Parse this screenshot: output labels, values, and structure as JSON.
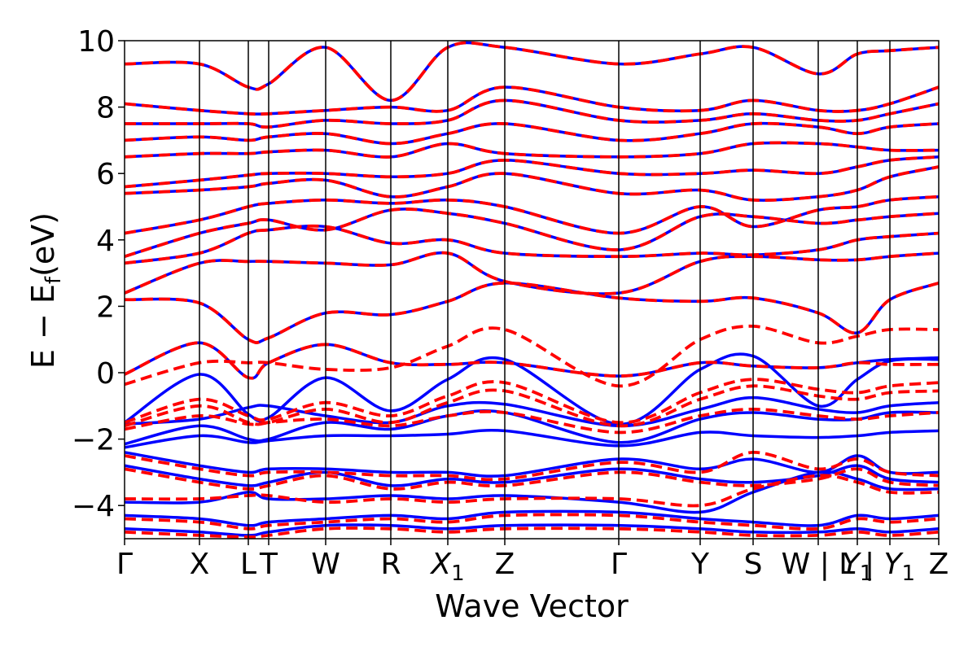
{
  "chart_data": {
    "type": "line",
    "title": "",
    "xlabel": "Wave Vector",
    "ylabel": "E − E",
    "ylabel_subscript": "f",
    "ylabel_unit": "(eV)",
    "ylim": [
      -5,
      10
    ],
    "y_ticks": [
      10,
      8,
      6,
      4,
      2,
      0,
      -2,
      -4
    ],
    "y_tick_labels": [
      "10",
      "8",
      "6",
      "4",
      "2",
      "0",
      "−2",
      "−4"
    ],
    "k_path": [
      {
        "label": "Γ",
        "k": 0.0
      },
      {
        "label": "X",
        "k": 0.92
      },
      {
        "label": "L",
        "k": 1.52
      },
      {
        "label": "T",
        "k": 1.77
      },
      {
        "label": "W",
        "k": 2.47
      },
      {
        "label": "R",
        "k": 3.27
      },
      {
        "label": "X",
        "sub": "1",
        "k": 3.97
      },
      {
        "label": "Z",
        "k": 4.67
      },
      {
        "label": "Γ",
        "k": 6.07
      },
      {
        "label": "Y",
        "k": 7.07
      },
      {
        "label": "S",
        "k": 7.72
      },
      {
        "label": "W | L",
        "k": 8.52
      },
      {
        "label": "Y",
        "sub": "1",
        "k": 9.0
      },
      {
        "label": "| Y",
        "sub": "1",
        "k": 9.4
      },
      {
        "label": "Z",
        "k": 10.0
      }
    ],
    "grid": false,
    "legend": "none",
    "series": [
      {
        "style": "solid",
        "color": "#0000ff",
        "values_note": "",
        "bands": [
          [
            -0.05,
            0.9,
            -0.15,
            0.3,
            0.85,
            0.3,
            0.25,
            0.3,
            -0.1,
            0.3,
            0.2,
            0.15,
            0.3,
            0.4,
            0.45
          ],
          [
            -1.5,
            -0.05,
            -1.25,
            -1.35,
            -0.15,
            -1.15,
            -0.2,
            0.4,
            -1.55,
            0.1,
            0.5,
            -1.0,
            -0.2,
            0.35,
            0.4
          ],
          [
            -1.55,
            -1.4,
            -1.05,
            -1.0,
            -1.3,
            -1.5,
            -1.0,
            -0.95,
            -1.6,
            -1.1,
            -0.75,
            -1.1,
            -1.2,
            -1.0,
            -0.9
          ],
          [
            -2.15,
            -1.6,
            -2.0,
            -2.0,
            -1.5,
            -1.7,
            -1.3,
            -1.2,
            -2.1,
            -1.4,
            -1.2,
            -1.4,
            -1.4,
            -1.2,
            -1.2
          ],
          [
            -2.25,
            -1.9,
            -2.1,
            -2.05,
            -1.9,
            -1.9,
            -1.85,
            -1.75,
            -2.2,
            -1.8,
            -1.9,
            -1.95,
            -1.9,
            -1.8,
            -1.75
          ],
          [
            2.2,
            2.1,
            1.0,
            1.05,
            1.8,
            1.75,
            2.15,
            2.7,
            2.25,
            2.15,
            2.25,
            1.8,
            1.2,
            2.2,
            2.7
          ],
          [
            2.4,
            3.3,
            3.35,
            3.35,
            3.3,
            3.25,
            3.6,
            2.75,
            2.4,
            3.35,
            3.5,
            3.4,
            3.4,
            3.5,
            3.6
          ],
          [
            3.3,
            3.6,
            4.2,
            4.3,
            4.4,
            3.9,
            4.0,
            3.6,
            3.5,
            3.6,
            3.55,
            3.7,
            4.0,
            4.1,
            4.2
          ],
          [
            3.5,
            4.2,
            4.5,
            4.6,
            4.3,
            4.9,
            4.8,
            4.5,
            3.7,
            4.7,
            4.7,
            4.5,
            4.6,
            4.7,
            4.8
          ],
          [
            4.2,
            4.6,
            5.0,
            5.1,
            5.2,
            5.1,
            5.2,
            5.0,
            4.2,
            5.0,
            4.4,
            4.9,
            5.0,
            5.2,
            5.3
          ],
          [
            5.4,
            5.5,
            5.6,
            5.7,
            5.8,
            5.3,
            5.6,
            6.0,
            5.4,
            5.5,
            5.2,
            5.3,
            5.5,
            5.9,
            6.2
          ],
          [
            5.6,
            5.8,
            5.95,
            6.0,
            6.0,
            5.9,
            6.0,
            6.4,
            6.0,
            6.0,
            6.1,
            6.0,
            6.2,
            6.4,
            6.5
          ],
          [
            6.5,
            6.6,
            6.6,
            6.65,
            6.7,
            6.5,
            6.9,
            6.6,
            6.5,
            6.6,
            6.9,
            6.9,
            6.8,
            6.7,
            6.7
          ],
          [
            7.0,
            7.1,
            7.0,
            7.1,
            7.2,
            6.9,
            7.2,
            7.5,
            7.0,
            7.2,
            7.5,
            7.4,
            7.2,
            7.4,
            7.5
          ],
          [
            7.5,
            7.5,
            7.5,
            7.4,
            7.6,
            7.5,
            7.6,
            8.2,
            7.6,
            7.6,
            7.8,
            7.6,
            7.6,
            7.8,
            8.1
          ],
          [
            8.1,
            7.9,
            7.8,
            7.8,
            7.9,
            8.0,
            7.9,
            8.6,
            8.0,
            7.9,
            8.2,
            7.9,
            7.9,
            8.1,
            8.6
          ],
          [
            9.3,
            9.3,
            8.6,
            8.7,
            9.8,
            8.2,
            9.8,
            9.8,
            9.3,
            9.6,
            9.8,
            9.0,
            9.6,
            9.7,
            9.8
          ],
          [
            -2.4,
            -2.8,
            -3.0,
            -2.9,
            -2.9,
            -3.0,
            -3.0,
            -3.1,
            -2.6,
            -2.9,
            -2.6,
            -3.0,
            -2.5,
            -3.0,
            -3.0
          ],
          [
            -2.8,
            -3.2,
            -3.4,
            -3.3,
            -3.0,
            -3.4,
            -3.2,
            -3.3,
            -2.9,
            -3.2,
            -3.3,
            -3.1,
            -2.8,
            -3.2,
            -3.3
          ],
          [
            -3.9,
            -3.9,
            -3.6,
            -3.8,
            -3.8,
            -3.7,
            -3.8,
            -3.7,
            -3.9,
            -4.2,
            -3.6,
            -3.0,
            -3.2,
            -3.5,
            -3.5
          ],
          [
            -4.3,
            -4.4,
            -4.6,
            -4.5,
            -4.4,
            -4.3,
            -4.4,
            -4.2,
            -4.2,
            -4.4,
            -4.5,
            -4.6,
            -4.3,
            -4.4,
            -4.3
          ],
          [
            -4.7,
            -4.8,
            -4.9,
            -4.8,
            -4.6,
            -4.6,
            -4.7,
            -4.6,
            -4.6,
            -4.7,
            -4.8,
            -4.8,
            -4.7,
            -4.8,
            -4.7
          ]
        ]
      },
      {
        "style": "dashed",
        "color": "#ff0000",
        "bands": [
          [
            -0.05,
            0.9,
            -0.15,
            0.3,
            0.85,
            0.3,
            0.25,
            0.3,
            -0.1,
            0.3,
            0.2,
            0.15,
            0.3,
            0.25,
            0.25
          ],
          [
            -0.35,
            0.3,
            0.3,
            0.3,
            0.1,
            0.15,
            0.8,
            1.3,
            -0.4,
            1.0,
            1.4,
            0.9,
            1.1,
            1.3,
            1.3
          ],
          [
            -1.5,
            -0.8,
            -1.3,
            -1.4,
            -0.9,
            -1.3,
            -0.7,
            -0.3,
            -1.5,
            -0.6,
            -0.2,
            -0.5,
            -0.6,
            -0.4,
            -0.3
          ],
          [
            -1.6,
            -1.0,
            -1.5,
            -1.5,
            -1.1,
            -1.5,
            -0.9,
            -0.55,
            -1.6,
            -0.8,
            -0.4,
            -0.7,
            -0.8,
            -0.6,
            -0.55
          ],
          [
            -1.7,
            -1.3,
            -1.55,
            -1.5,
            -1.4,
            -1.6,
            -1.3,
            -1.2,
            -1.8,
            -1.3,
            -1.1,
            -1.3,
            -1.4,
            -1.3,
            -1.2
          ],
          [
            2.2,
            2.1,
            1.0,
            1.05,
            1.8,
            1.75,
            2.15,
            2.7,
            2.25,
            2.15,
            2.25,
            1.8,
            1.2,
            2.2,
            2.7
          ],
          [
            2.4,
            3.3,
            3.35,
            3.35,
            3.3,
            3.25,
            3.6,
            2.75,
            2.4,
            3.35,
            3.5,
            3.4,
            3.4,
            3.5,
            3.6
          ],
          [
            3.3,
            3.6,
            4.2,
            4.3,
            4.4,
            3.9,
            4.0,
            3.6,
            3.5,
            3.6,
            3.55,
            3.7,
            4.0,
            4.1,
            4.2
          ],
          [
            3.5,
            4.2,
            4.5,
            4.6,
            4.3,
            4.9,
            4.8,
            4.5,
            3.7,
            4.7,
            4.7,
            4.5,
            4.6,
            4.7,
            4.8
          ],
          [
            4.2,
            4.6,
            5.0,
            5.1,
            5.2,
            5.1,
            5.2,
            5.0,
            4.2,
            5.0,
            4.4,
            4.9,
            5.0,
            5.2,
            5.3
          ],
          [
            5.4,
            5.5,
            5.6,
            5.7,
            5.8,
            5.3,
            5.6,
            6.0,
            5.4,
            5.5,
            5.2,
            5.3,
            5.5,
            5.9,
            6.2
          ],
          [
            5.6,
            5.8,
            5.95,
            6.0,
            6.0,
            5.9,
            6.0,
            6.4,
            6.0,
            6.0,
            6.1,
            6.0,
            6.2,
            6.4,
            6.5
          ],
          [
            6.5,
            6.6,
            6.6,
            6.65,
            6.7,
            6.5,
            6.9,
            6.6,
            6.5,
            6.6,
            6.9,
            6.9,
            6.8,
            6.7,
            6.7
          ],
          [
            7.0,
            7.1,
            7.0,
            7.1,
            7.2,
            6.9,
            7.2,
            7.5,
            7.0,
            7.2,
            7.5,
            7.4,
            7.2,
            7.4,
            7.5
          ],
          [
            7.5,
            7.5,
            7.5,
            7.4,
            7.6,
            7.5,
            7.6,
            8.2,
            7.6,
            7.6,
            7.8,
            7.6,
            7.6,
            7.8,
            8.1
          ],
          [
            8.1,
            7.9,
            7.8,
            7.8,
            7.9,
            8.0,
            7.9,
            8.6,
            8.0,
            7.9,
            8.2,
            7.9,
            7.9,
            8.1,
            8.6
          ],
          [
            9.3,
            9.3,
            8.6,
            8.7,
            9.8,
            8.2,
            9.8,
            9.8,
            9.3,
            9.6,
            9.8,
            9.0,
            9.6,
            9.7,
            9.8
          ],
          [
            -2.5,
            -2.9,
            -3.1,
            -3.0,
            -3.0,
            -3.1,
            -3.1,
            -3.2,
            -2.7,
            -3.0,
            -2.4,
            -2.9,
            -2.6,
            -3.0,
            -3.1
          ],
          [
            -2.9,
            -3.3,
            -3.5,
            -3.4,
            -3.1,
            -3.5,
            -3.3,
            -3.4,
            -3.0,
            -3.3,
            -3.4,
            -3.2,
            -2.9,
            -3.3,
            -3.4
          ],
          [
            -3.8,
            -3.8,
            -3.7,
            -3.7,
            -3.9,
            -3.8,
            -3.9,
            -3.8,
            -3.8,
            -4.0,
            -3.5,
            -3.1,
            -3.3,
            -3.6,
            -3.6
          ],
          [
            -4.4,
            -4.5,
            -4.7,
            -4.6,
            -4.5,
            -4.4,
            -4.5,
            -4.3,
            -4.3,
            -4.5,
            -4.6,
            -4.7,
            -4.4,
            -4.5,
            -4.4
          ],
          [
            -4.8,
            -4.9,
            -4.95,
            -4.9,
            -4.7,
            -4.7,
            -4.8,
            -4.7,
            -4.7,
            -4.8,
            -4.9,
            -4.9,
            -4.8,
            -4.9,
            -4.8
          ]
        ]
      }
    ]
  }
}
